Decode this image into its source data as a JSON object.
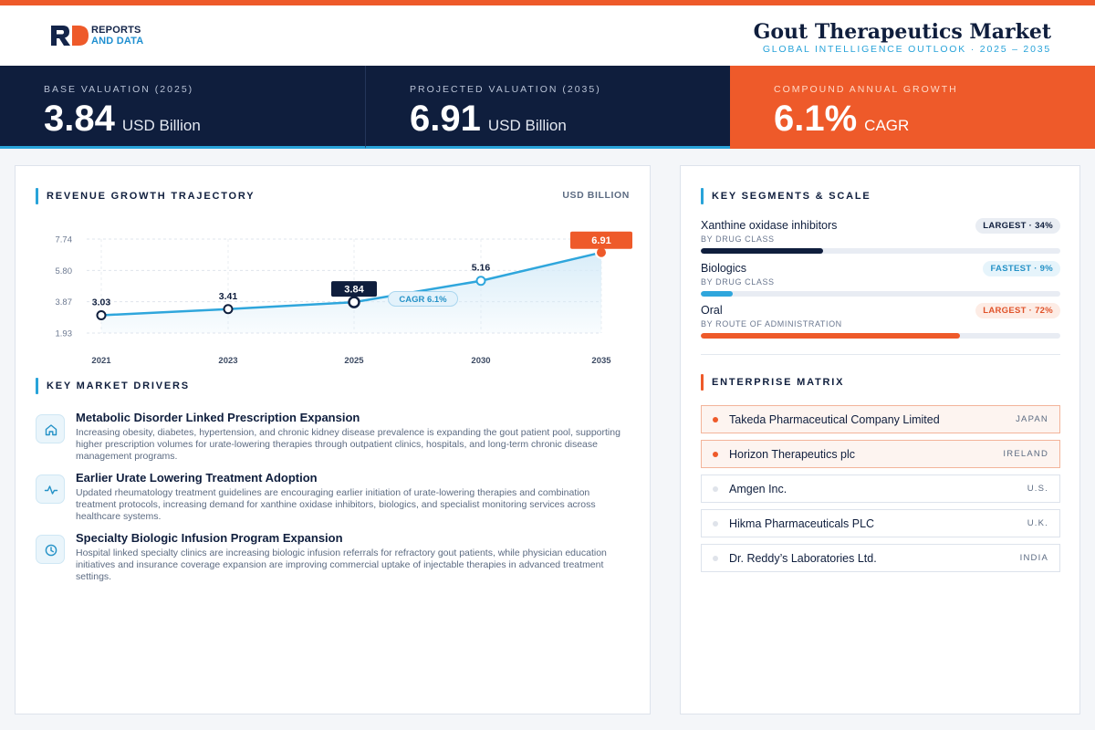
{
  "brand": {
    "logo_mark": "RD",
    "logo_line1": "REPORTS",
    "logo_line2": "AND DATA"
  },
  "header": {
    "title": "Gout Therapeutics Market",
    "subtitle": "GLOBAL INTELLIGENCE OUTLOOK · 2025 – 2035"
  },
  "kpis": [
    {
      "label": "BASE VALUATION (2025)",
      "value": "3.84",
      "unit": "USD Billion"
    },
    {
      "label": "PROJECTED VALUATION (2035)",
      "value": "6.91",
      "unit": "USD Billion"
    },
    {
      "label": "COMPOUND ANNUAL GROWTH",
      "value": "6.1%",
      "unit": "CAGR"
    }
  ],
  "trajectory": {
    "title": "REVENUE GROWTH TRAJECTORY",
    "unit": "USD BILLION"
  },
  "chart_data": {
    "type": "area",
    "x": [
      "2021",
      "2023",
      "2025",
      "2030",
      "2035"
    ],
    "values": [
      3.03,
      3.41,
      3.84,
      5.16,
      6.91
    ],
    "value_labels": [
      "3.03",
      "3.41",
      "3.84",
      "5.16",
      "6.91"
    ],
    "y_ticks": [
      "7.74",
      "5.80",
      "3.87",
      "1.93"
    ],
    "y_tick_values": [
      7.74,
      5.8,
      3.87,
      1.93
    ],
    "ylim": [
      1.93,
      7.74
    ],
    "annotation": "CAGR 6.1%",
    "highlight": {
      "base_index": 2,
      "final_index": 4
    },
    "grid": true,
    "colors": {
      "line": "#2fa6dc",
      "fill": "#d7ecf8",
      "final": "#ee5a2a",
      "base": "#0f1e3d"
    }
  },
  "drivers": {
    "title": "KEY MARKET DRIVERS",
    "items": [
      {
        "icon": "home-icon",
        "title": "Metabolic Disorder Linked Prescription Expansion",
        "desc": "Increasing obesity, diabetes, hypertension, and chronic kidney disease prevalence is expanding the gout patient pool, supporting higher prescription volumes for urate-lowering therapies through outpatient clinics, hospitals, and long-term chronic disease management programs."
      },
      {
        "icon": "activity-icon",
        "title": "Earlier Urate Lowering Treatment Adoption",
        "desc": "Updated rheumatology treatment guidelines are encouraging earlier initiation of urate-lowering therapies and combination treatment protocols, increasing demand for xanthine oxidase inhibitors, biologics, and specialist monitoring services across healthcare systems."
      },
      {
        "icon": "clock-icon",
        "title": "Specialty Biologic Infusion Program Expansion",
        "desc": "Hospital linked specialty clinics are increasing biologic infusion referrals for refractory gout patients, while physician education initiatives and insurance coverage expansion are improving commercial uptake of injectable therapies in advanced treatment settings."
      }
    ]
  },
  "segments": {
    "title": "KEY SEGMENTS & SCALE",
    "items": [
      {
        "name": "Xanthine oxidase inhibitors",
        "sub": "BY DRUG CLASS",
        "badge": "LARGEST · 34%",
        "share": 0.34,
        "color": "#0f1e3d",
        "badge_bg": "#e9edf3",
        "badge_fg": "#0f1e3d"
      },
      {
        "name": "Biologics",
        "sub": "BY DRUG CLASS",
        "badge": "FASTEST · 9%",
        "share": 0.09,
        "color": "#2fa6dc",
        "badge_bg": "#e6f4fb",
        "badge_fg": "#2592c7"
      },
      {
        "name": "Oral",
        "sub": "BY ROUTE OF ADMINISTRATION",
        "badge": "LARGEST · 72%",
        "share": 0.72,
        "color": "#ee5a2a",
        "badge_bg": "#fdece5",
        "badge_fg": "#e0532a"
      }
    ]
  },
  "matrix": {
    "title": "ENTERPRISE MATRIX",
    "companies": [
      {
        "name": "Takeda Pharmaceutical Company Limited",
        "country": "JAPAN",
        "highlight": true
      },
      {
        "name": "Horizon Therapeutics plc",
        "country": "IRELAND",
        "highlight": true
      },
      {
        "name": "Amgen Inc.",
        "country": "U.S.",
        "highlight": false
      },
      {
        "name": "Hikma Pharmaceuticals PLC",
        "country": "U.K.",
        "highlight": false
      },
      {
        "name": "Dr. Reddy’s Laboratories Ltd.",
        "country": "INDIA",
        "highlight": false
      }
    ]
  }
}
